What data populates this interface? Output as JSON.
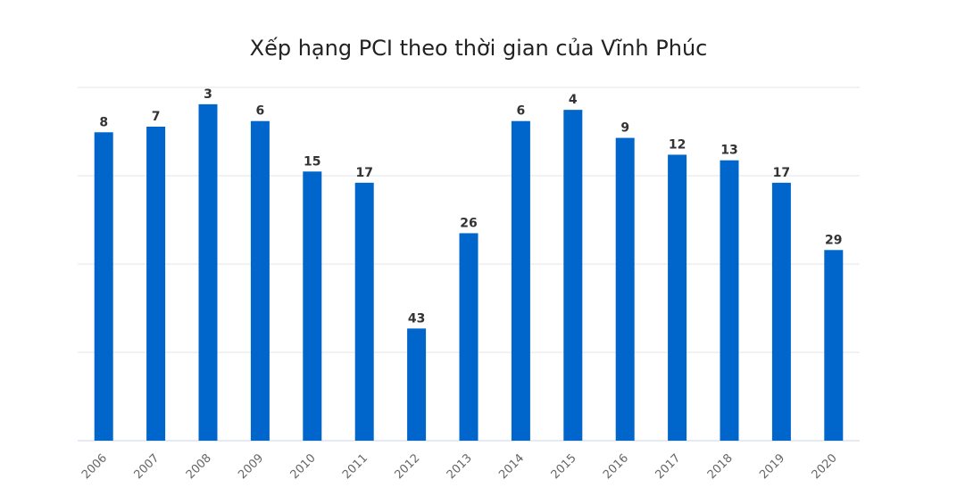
{
  "chart_data": {
    "type": "bar",
    "title": "Xếp hạng PCI theo thời gian của Vĩnh Phúc",
    "categories": [
      "2006",
      "2007",
      "2008",
      "2009",
      "2010",
      "2011",
      "2012",
      "2013",
      "2014",
      "2015",
      "2016",
      "2017",
      "2018",
      "2019",
      "2020"
    ],
    "series": [
      {
        "values": [
          8,
          7,
          3,
          6,
          15,
          17,
          43,
          26,
          6,
          4,
          9,
          12,
          13,
          17,
          29
        ]
      }
    ],
    "y_axis": {
      "reversed": true,
      "range": [
        63,
        0
      ],
      "tick_labels_visible": false
    },
    "grid": true,
    "legend": false,
    "colors": {
      "bar": "#0066cc"
    }
  }
}
